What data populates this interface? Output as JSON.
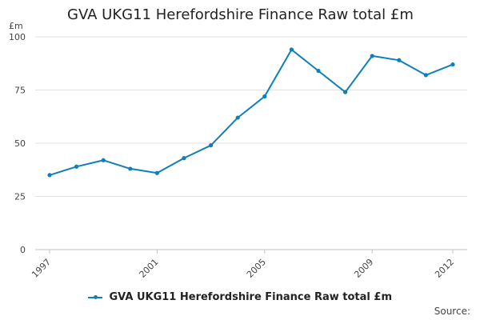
{
  "chart_data": {
    "type": "line",
    "title": "GVA UKG11 Herefordshire Finance Raw total £m",
    "unit_label": "£m",
    "x": [
      1997,
      1998,
      1999,
      2000,
      2001,
      2002,
      2003,
      2004,
      2005,
      2006,
      2007,
      2008,
      2009,
      2010,
      2011,
      2012
    ],
    "x_tick_labels": [
      "1997",
      "2001",
      "2005",
      "2009",
      "2012"
    ],
    "y_tick_labels": [
      "0",
      "25",
      "50",
      "75",
      "100"
    ],
    "ylim": [
      0,
      100
    ],
    "grid": true,
    "series": [
      {
        "name": "GVA UKG11 Herefordshire Finance Raw total £m",
        "color": "#0f7fba",
        "values": [
          35,
          39,
          42,
          38,
          36,
          43,
          49,
          62,
          72,
          94,
          84,
          74,
          91,
          89,
          82,
          87
        ]
      }
    ],
    "legend_position": "bottom",
    "source_label": "Source:"
  }
}
